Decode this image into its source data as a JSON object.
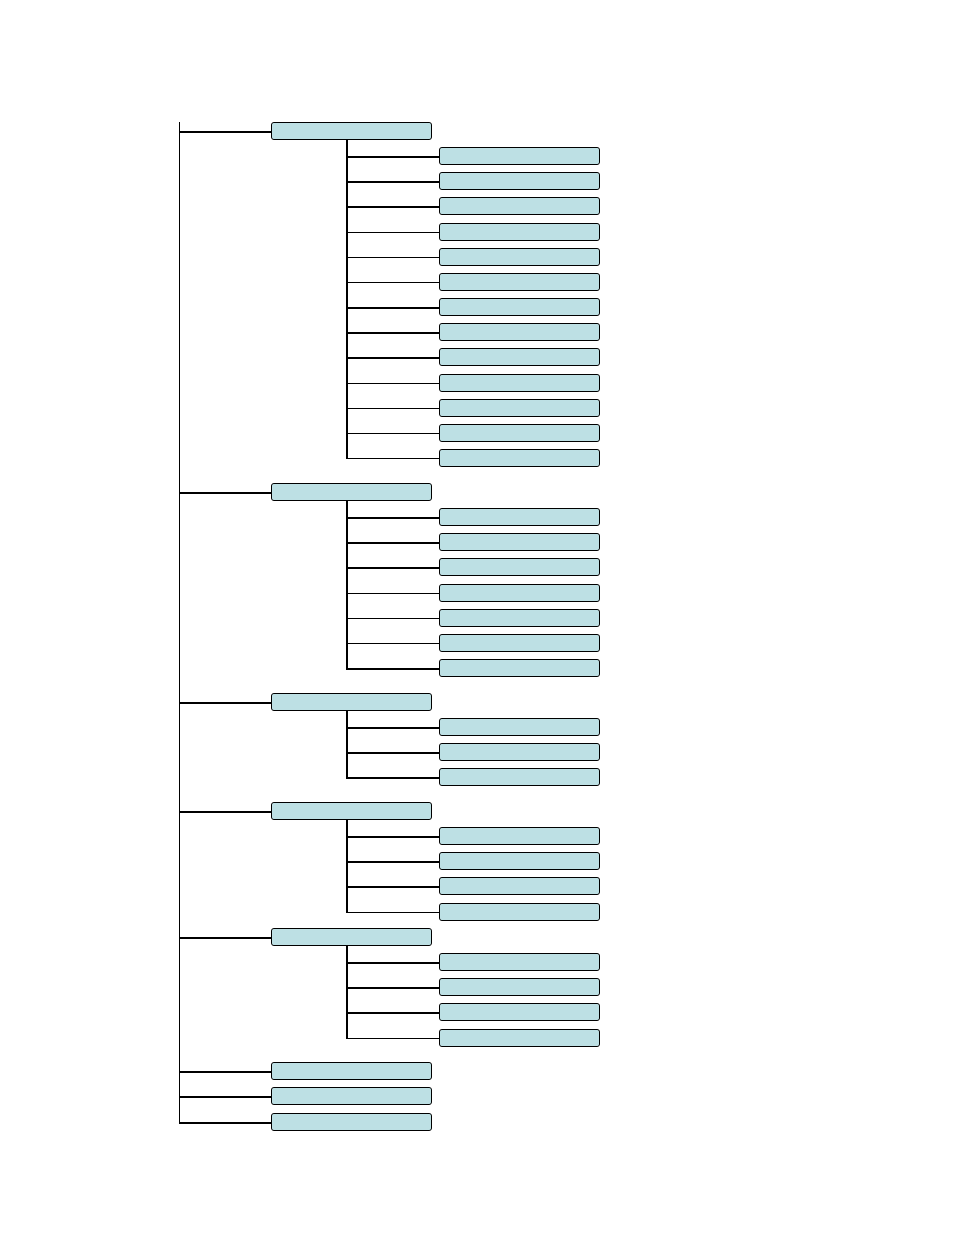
{
  "diagram": {
    "node_fill": "#bde0e4",
    "node_border": "#000000",
    "line_color": "#000000",
    "groups": [
      {
        "label": "",
        "children": [
          "",
          "",
          "",
          "",
          "",
          "",
          "",
          "",
          "",
          "",
          "",
          "",
          ""
        ]
      },
      {
        "label": "",
        "children": [
          "",
          "",
          "",
          "",
          "",
          "",
          ""
        ]
      },
      {
        "label": "",
        "children": [
          "",
          "",
          ""
        ]
      },
      {
        "label": "",
        "children": [
          "",
          "",
          "",
          ""
        ]
      },
      {
        "label": "",
        "children": [
          "",
          "",
          "",
          ""
        ]
      },
      {
        "label": "",
        "children": []
      },
      {
        "label": "",
        "children": []
      },
      {
        "label": "",
        "children": []
      }
    ]
  }
}
